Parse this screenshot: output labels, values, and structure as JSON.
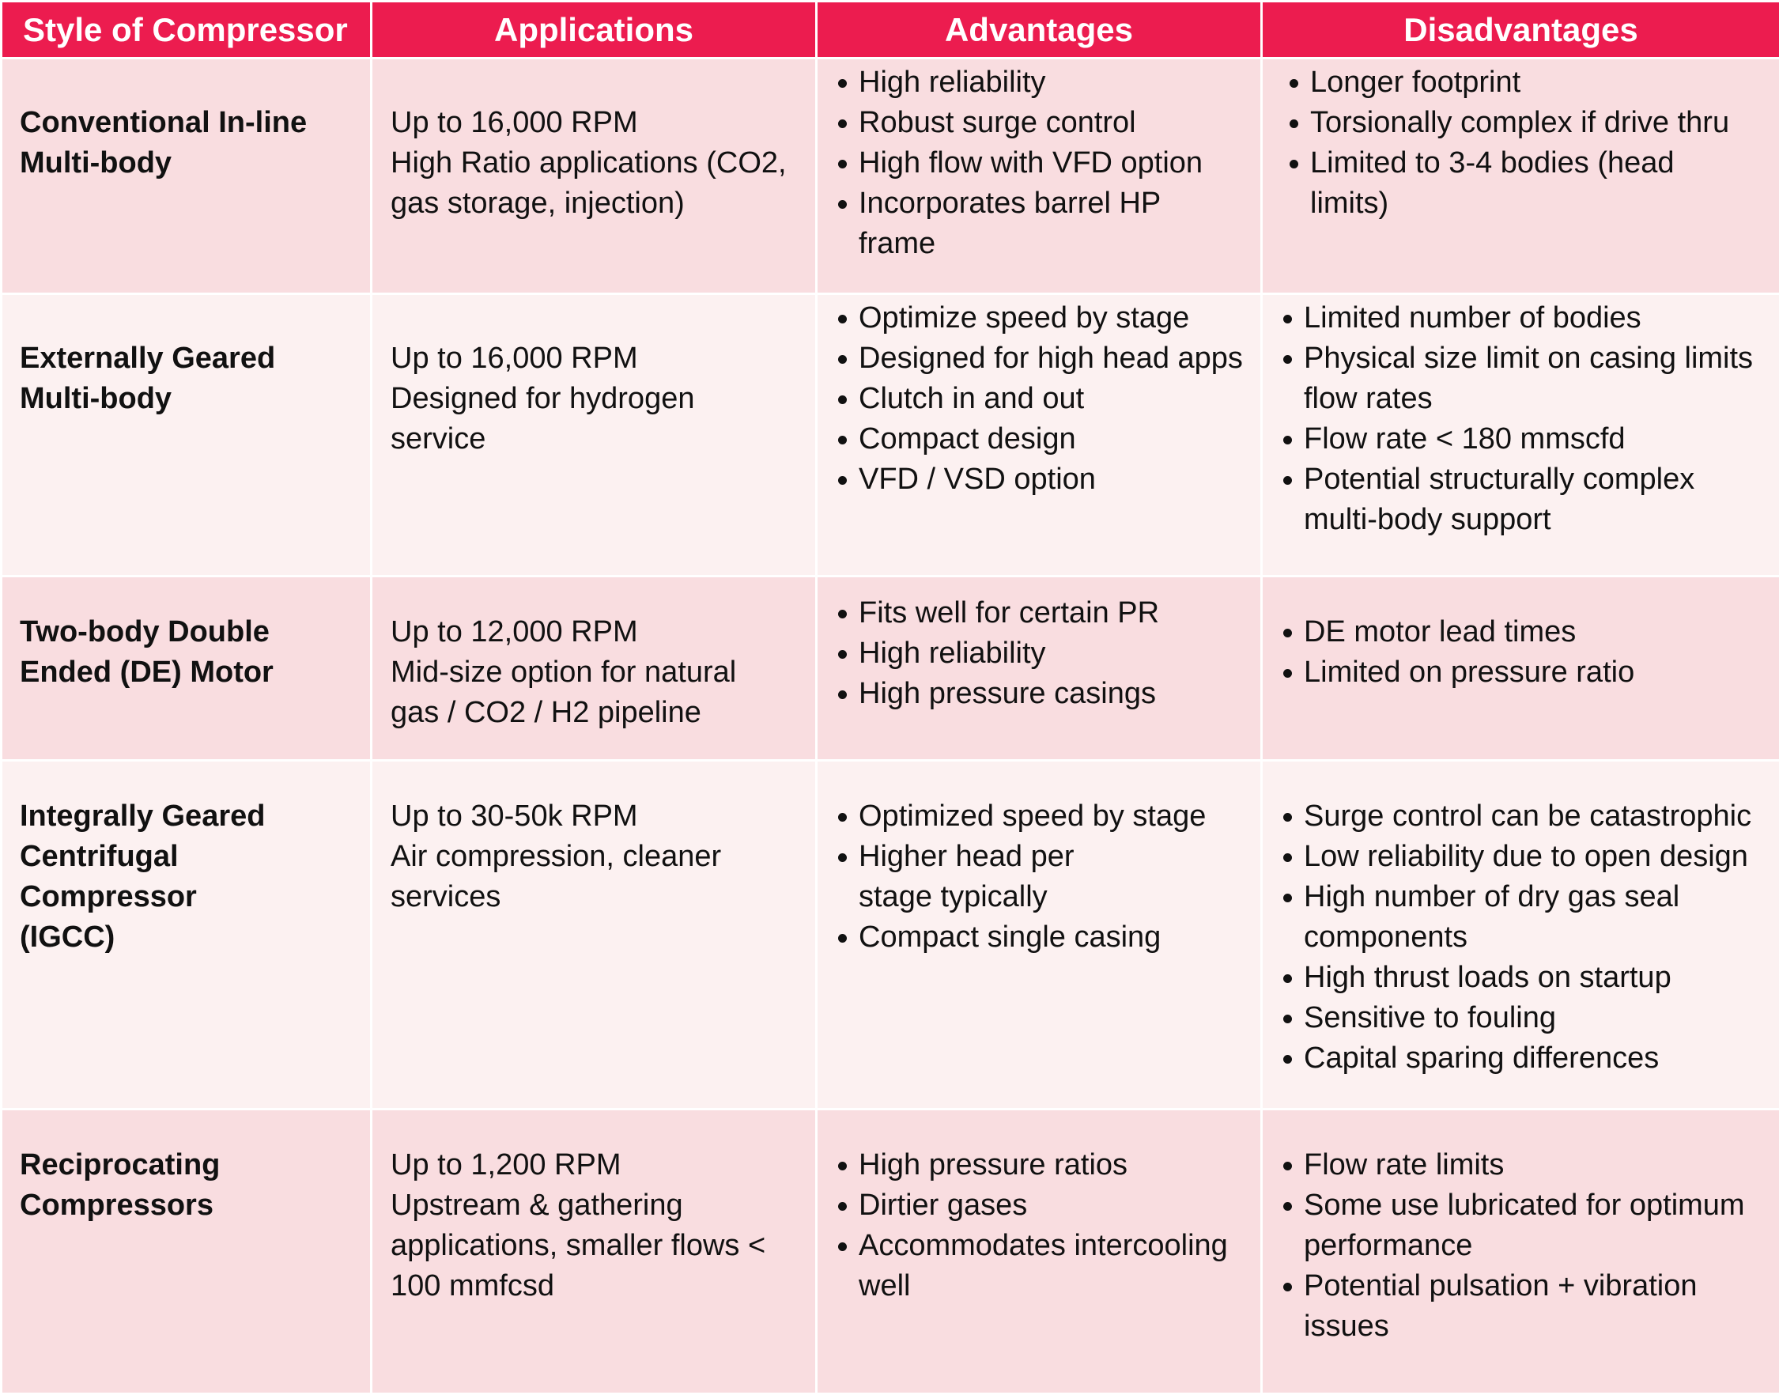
{
  "table": {
    "headers": [
      "Style of Compressor",
      "Applications",
      "Advantages",
      "Disadvantages"
    ],
    "rows": [
      {
        "style": [
          "Conventional In-line",
          "Multi-body"
        ],
        "applications": [
          "Up to 16,000 RPM",
          "High Ratio applications (CO2,",
          "gas storage, injection)"
        ],
        "advantages": [
          "High reliability",
          "Robust surge control",
          "High flow with VFD option",
          "Incorporates barrel HP frame"
        ],
        "disadvantages": [
          "Longer footprint",
          "Torsionally complex if drive thru",
          "Limited to 3-4 bodies (head limits)"
        ]
      },
      {
        "style": [
          "Externally Geared",
          "Multi-body"
        ],
        "applications": [
          "Up to 16,000 RPM",
          "Designed for hydrogen service"
        ],
        "advantages": [
          "Optimize speed by stage",
          "Designed for high head apps",
          "Clutch in and out",
          "Compact design",
          "VFD / VSD option"
        ],
        "disadvantages": [
          "Limited number of bodies",
          "Physical size limit on casing limits flow rates",
          "Flow rate < 180 mmscfd",
          "Potential structurally complex multi-body support"
        ]
      },
      {
        "style": [
          "Two-body Double",
          "Ended (DE) Motor"
        ],
        "applications": [
          "Up to 12,000 RPM",
          "Mid-size option for natural",
          "gas / CO2 / H2 pipeline"
        ],
        "advantages": [
          "Fits well for certain PR",
          "High reliability",
          "High pressure casings"
        ],
        "disadvantages": [
          "DE motor lead times",
          "Limited on pressure ratio"
        ]
      },
      {
        "style": [
          "Integrally Geared",
          "Centrifugal Compressor",
          "(IGCC)"
        ],
        "applications": [
          "Up to 30-50k RPM",
          "Air compression, cleaner",
          "services"
        ],
        "advantages": [
          "Optimized speed by stage",
          "Higher head per stage typically",
          "Compact single casing"
        ],
        "disadvantages": [
          "Surge control can be catastrophic",
          "Low reliability due to open design",
          "High number of dry gas seal components",
          "High thrust loads on startup",
          "Sensitive to fouling",
          "Capital sparing differences"
        ]
      },
      {
        "style": [
          "Reciprocating",
          "Compressors"
        ],
        "applications": [
          "Up to 1,200 RPM",
          "Upstream & gathering",
          "applications, smaller flows <",
          "100 mmfcsd"
        ],
        "advantages": [
          "High pressure ratios",
          "Dirtier gases",
          "Accommodates intercooling well"
        ],
        "disadvantages": [
          "Flow rate limits",
          "Some use lubricated for optimum performance",
          "Potential pulsation + vibration issues"
        ]
      }
    ]
  }
}
